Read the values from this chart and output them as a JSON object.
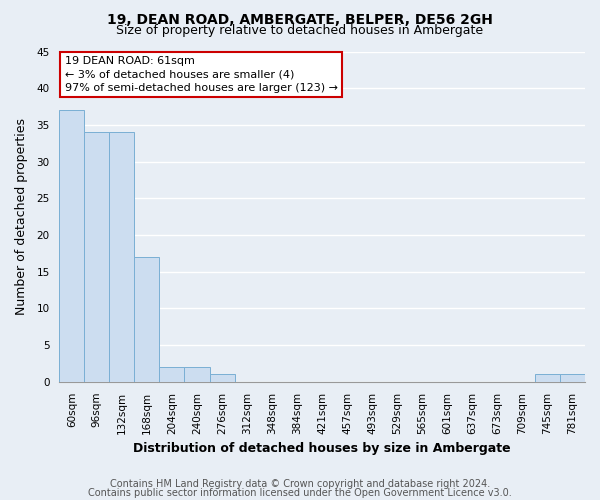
{
  "title": "19, DEAN ROAD, AMBERGATE, BELPER, DE56 2GH",
  "subtitle": "Size of property relative to detached houses in Ambergate",
  "xlabel": "Distribution of detached houses by size in Ambergate",
  "ylabel": "Number of detached properties",
  "bar_labels": [
    "60sqm",
    "96sqm",
    "132sqm",
    "168sqm",
    "204sqm",
    "240sqm",
    "276sqm",
    "312sqm",
    "348sqm",
    "384sqm",
    "421sqm",
    "457sqm",
    "493sqm",
    "529sqm",
    "565sqm",
    "601sqm",
    "637sqm",
    "673sqm",
    "709sqm",
    "745sqm",
    "781sqm"
  ],
  "bar_values": [
    37,
    34,
    34,
    17,
    2,
    2,
    1,
    0,
    0,
    0,
    0,
    0,
    0,
    0,
    0,
    0,
    0,
    0,
    0,
    1,
    1
  ],
  "bar_color": "#ccddf0",
  "bar_edge_color": "#7aafd4",
  "annotation_box_text": "19 DEAN ROAD: 61sqm\n← 3% of detached houses are smaller (4)\n97% of semi-detached houses are larger (123) →",
  "annotation_box_color": "#ffffff",
  "annotation_box_edge_color": "#cc0000",
  "ylim": [
    0,
    45
  ],
  "yticks": [
    0,
    5,
    10,
    15,
    20,
    25,
    30,
    35,
    40,
    45
  ],
  "footer_line1": "Contains HM Land Registry data © Crown copyright and database right 2024.",
  "footer_line2": "Contains public sector information licensed under the Open Government Licence v3.0.",
  "bg_color": "#e8eef5",
  "plot_bg_color": "#e8eef5",
  "grid_color": "#ffffff",
  "title_fontsize": 10,
  "subtitle_fontsize": 9,
  "axis_label_fontsize": 9,
  "tick_fontsize": 7.5,
  "footer_fontsize": 7,
  "ann_fontsize": 8
}
